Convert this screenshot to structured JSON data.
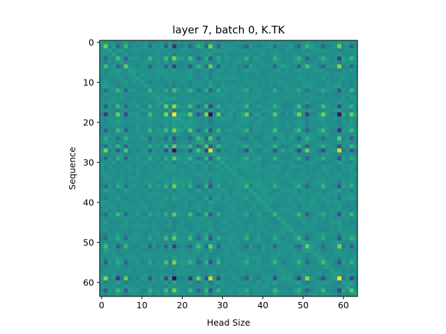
{
  "chart_data": {
    "type": "heatmap",
    "title": "layer 7, batch 0, K.TK",
    "xlabel": "Head Size",
    "ylabel": "Sequence",
    "rows": 64,
    "cols": 64,
    "x_extent": [
      -0.5,
      63.5
    ],
    "y_extent": [
      -0.5,
      63.5
    ],
    "y_inverted": true,
    "xticks": [
      0,
      10,
      20,
      30,
      40,
      50,
      60
    ],
    "yticks": [
      0,
      10,
      20,
      30,
      40,
      50,
      60
    ],
    "colormap": "viridis",
    "value_range": [
      -1,
      1
    ],
    "grid": false,
    "highlight_indices": {
      "strong": [
        18,
        27,
        59
      ],
      "moderate": [
        1,
        4,
        6,
        12,
        16,
        22,
        24,
        26,
        29,
        36,
        43,
        49,
        51,
        55,
        62
      ]
    },
    "colors": {
      "low": "#440154",
      "mid": "#21918c",
      "high": "#fde725"
    }
  }
}
